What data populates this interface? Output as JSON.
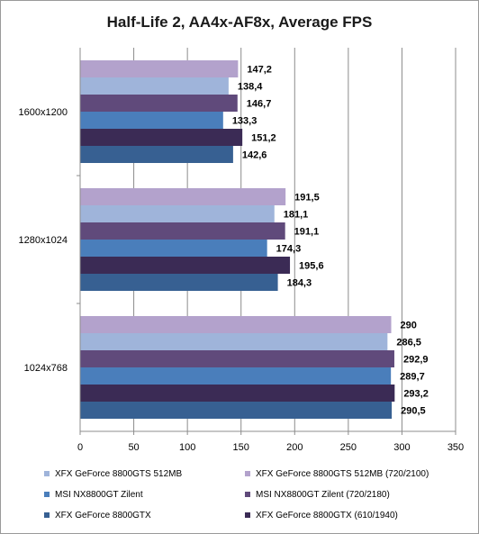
{
  "chart_data": {
    "type": "bar",
    "orientation": "horizontal",
    "title": "Half-Life 2, AA4x-AF8x, Average FPS",
    "xlabel": "",
    "ylabel": "",
    "xlim": [
      0,
      350
    ],
    "ticks": [
      0,
      50,
      100,
      150,
      200,
      250,
      300,
      350
    ],
    "tick_labels": [
      "0",
      "50",
      "100",
      "150",
      "200",
      "250",
      "300",
      "350"
    ],
    "grid": true,
    "legend_position": "bottom",
    "categories": [
      "1600x1200",
      "1280x1024",
      "1024x768"
    ],
    "series": [
      {
        "name": "XFX GeForce 8800GTS 512MB (720/2100)",
        "color": "#b3a2cc",
        "values": [
          147.2,
          191.5,
          290
        ],
        "labels": [
          "147,2",
          "191,5",
          "290"
        ]
      },
      {
        "name": "XFX GeForce 8800GTS 512MB",
        "color": "#9fb4da",
        "values": [
          138.4,
          181.1,
          286.5
        ],
        "labels": [
          "138,4",
          "181,1",
          "286,5"
        ]
      },
      {
        "name": "MSI NX8800GT Zilent (720/2180)",
        "color": "#604a7b",
        "values": [
          146.7,
          191.1,
          292.9
        ],
        "labels": [
          "146,7",
          "191,1",
          "292,9"
        ]
      },
      {
        "name": "MSI NX8800GT Zilent",
        "color": "#4a7ebb",
        "values": [
          133.3,
          174.3,
          289.7
        ],
        "labels": [
          "133,3",
          "174,3",
          "289,7"
        ]
      },
      {
        "name": "XFX GeForce 8800GTX (610/1940)",
        "color": "#3b2b55",
        "values": [
          151.2,
          195.6,
          293.2
        ],
        "labels": [
          "151,2",
          "195,6",
          "293,2"
        ]
      },
      {
        "name": "XFX GeForce 8800GTX",
        "color": "#376092",
        "values": [
          142.6,
          184.3,
          290.5
        ],
        "labels": [
          "142,6",
          "184,3",
          "290,5"
        ]
      }
    ],
    "legend": [
      {
        "name": "XFX GeForce 8800GTS 512MB",
        "color": "#9fb4da"
      },
      {
        "name": "XFX GeForce 8800GTS 512MB (720/2100)",
        "color": "#b3a2cc"
      },
      {
        "name": "MSI NX8800GT Zilent",
        "color": "#4a7ebb"
      },
      {
        "name": "MSI NX8800GT Zilent (720/2180)",
        "color": "#604a7b"
      },
      {
        "name": "XFX GeForce 8800GTX",
        "color": "#376092"
      },
      {
        "name": "XFX GeForce 8800GTX (610/1940)",
        "color": "#3b2b55"
      }
    ]
  }
}
